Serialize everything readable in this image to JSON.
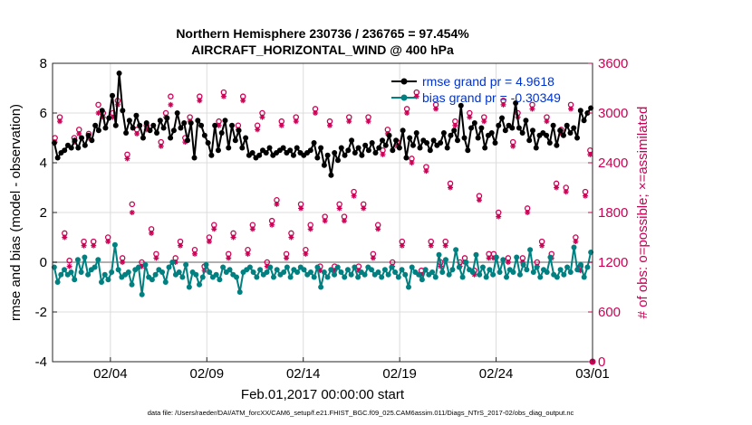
{
  "chart_data": {
    "type": "line",
    "title": "Northern Hemisphere 230736 / 236765 = 97.454%",
    "subtitle": "AIRCRAFT_HORIZONTAL_WIND @ 400 hPa",
    "xlabel": "Feb.01,2017 00:00:00 start",
    "ylabel_left": "rmse and bias (model - observation)",
    "ylabel_right": "# of obs: o=possible; ×=assimilated",
    "footer": "data file: /Users/raeder/DAI/ATM_forcXX/CAM6_setup/f.e21.FHIST_BGC.f09_025.CAM6assim.011/Diags_NTrS_2017-02/obs_diag_output.nc",
    "x_range": [
      0,
      28
    ],
    "x_ticks": [
      {
        "v": 3,
        "label": "02/04"
      },
      {
        "v": 8,
        "label": "02/09"
      },
      {
        "v": 13,
        "label": "02/14"
      },
      {
        "v": 18,
        "label": "02/19"
      },
      {
        "v": 23,
        "label": "02/24"
      },
      {
        "v": 28,
        "label": "03/01"
      }
    ],
    "ylim_left": [
      -4,
      8
    ],
    "yticks_left": [
      "-4",
      "-2",
      "0",
      "2",
      "4",
      "6",
      "8"
    ],
    "ylim_right": [
      0,
      3600
    ],
    "yticks_right": [
      "0",
      "600",
      "1200",
      "1800",
      "2400",
      "3000",
      "3600"
    ],
    "colors": {
      "rmse": "#000000",
      "bias": "#008080",
      "obs": "#cc0055",
      "zero_line": "#b0b0b0",
      "legend_text": "#0033cc",
      "grid": "#dcdcdc"
    },
    "series": [
      {
        "name": "rmse grand pr = 4.9618",
        "axis": "left",
        "values": [
          4.8,
          4.2,
          4.4,
          4.5,
          4.7,
          4.6,
          4.9,
          4.6,
          5.0,
          4.7,
          5.1,
          4.9,
          5.5,
          5.3,
          6.1,
          5.4,
          5.8,
          6.7,
          5.5,
          7.6,
          6.1,
          5.2,
          5.7,
          5.4,
          5.9,
          5.5,
          5.0,
          5.6,
          5.3,
          5.5,
          5.2,
          5.7,
          5.4,
          5.8,
          5.0,
          5.3,
          6.0,
          5.4,
          5.6,
          4.9,
          5.6,
          4.2,
          5.7,
          5.5,
          5.1,
          4.8,
          4.3,
          5.5,
          4.5,
          5.2,
          5.7,
          4.6,
          5.5,
          4.9,
          5.3,
          4.6,
          5.0,
          4.3,
          4.4,
          4.2,
          4.3,
          4.5,
          4.4,
          4.6,
          4.3,
          4.4,
          4.5,
          4.6,
          4.4,
          4.5,
          4.3,
          4.6,
          4.4,
          4.3,
          4.4,
          4.5,
          4.8,
          4.2,
          4.6,
          3.9,
          4.3,
          3.5,
          4.4,
          4.1,
          4.6,
          4.3,
          4.5,
          4.9,
          4.4,
          4.6,
          4.3,
          4.7,
          4.5,
          4.8,
          4.4,
          4.6,
          4.9,
          4.7,
          5.1,
          4.5,
          4.9,
          4.6,
          5.3,
          4.2,
          5.0,
          4.7,
          5.2,
          4.6,
          4.9,
          4.8,
          4.5,
          4.9,
          4.7,
          4.8,
          5.2,
          4.6,
          5.1,
          5.3,
          4.9,
          6.3,
          5.0,
          4.5,
          5.4,
          5.6,
          5.0,
          5.4,
          4.6,
          5.1,
          5.2,
          4.8,
          5.5,
          5.8,
          5.3,
          5.5,
          5.4,
          6.4,
          5.4,
          5.2,
          5.7,
          4.9,
          5.3,
          4.6,
          5.1,
          5.2,
          5.1,
          4.8,
          5.5,
          4.7,
          5.3,
          5.1,
          5.5,
          5.2,
          5.4,
          5.0,
          6.1,
          5.7,
          6.0,
          6.2
        ]
      },
      {
        "name": "bias grand pr = -0.30349",
        "axis": "left",
        "values": [
          -0.2,
          -0.8,
          -0.5,
          -0.3,
          -0.5,
          -0.4,
          -0.7,
          0.1,
          -0.4,
          0.2,
          -0.5,
          -0.3,
          -0.2,
          0.1,
          -0.8,
          -0.5,
          -0.7,
          -0.4,
          0.7,
          -0.3,
          -0.6,
          -0.5,
          -0.4,
          -0.9,
          -0.3,
          -0.2,
          -1.3,
          -0.1,
          -0.6,
          -0.7,
          -0.5,
          -0.3,
          -0.4,
          -0.8,
          -0.2,
          0.0,
          -0.5,
          -0.4,
          -0.6,
          -0.1,
          -1.0,
          -0.4,
          -0.5,
          -0.9,
          -0.6,
          -0.1,
          -0.4,
          -0.6,
          -0.5,
          -0.7,
          -0.2,
          -0.4,
          -0.3,
          -0.5,
          -0.6,
          -1.2,
          -0.4,
          -0.3,
          -0.2,
          -0.4,
          -0.6,
          -0.3,
          -0.5,
          -0.4,
          -0.2,
          -0.6,
          -0.3,
          -0.5,
          -0.4,
          -0.2,
          -0.6,
          -0.3,
          -0.4,
          -0.2,
          -0.3,
          -0.5,
          -0.4,
          -0.6,
          -0.2,
          -1.0,
          -0.4,
          -0.6,
          -0.3,
          -0.5,
          -0.2,
          -0.4,
          -0.6,
          -0.3,
          -0.5,
          -0.2,
          -0.6,
          -0.4,
          -0.5,
          -0.2,
          -0.3,
          -0.5,
          -0.4,
          -0.6,
          -0.3,
          -0.5,
          -0.2,
          -0.4,
          -0.6,
          -0.3,
          -0.5,
          -1.0,
          -0.2,
          -0.4,
          -0.5,
          -0.7,
          -0.3,
          -0.5,
          -0.4,
          -0.6,
          0.3,
          -0.4,
          0.1,
          -0.5,
          -0.3,
          0.5,
          -0.2,
          -0.6,
          0.0,
          -0.3,
          -0.4,
          0.3,
          -0.5,
          -0.2,
          -0.6,
          -0.3,
          -0.5,
          0.2,
          -0.4,
          0.1,
          -0.6,
          -0.3,
          -0.4,
          0.2,
          -0.5,
          -0.1,
          -0.3,
          0.5,
          -0.4,
          -0.2,
          -0.6,
          -0.3,
          -0.4,
          0.2,
          -0.5,
          -0.6,
          -0.3,
          -0.5,
          -0.2,
          -0.4,
          0.6,
          -0.3,
          -0.1,
          -0.6,
          -0.2,
          0.4
        ]
      }
    ],
    "obs_possible": {
      "axis": "right",
      "marker": "o",
      "x": [
        0.125,
        0.375,
        0.625,
        0.875,
        1.125,
        1.375,
        1.625,
        1.875,
        2.125,
        2.375,
        2.625,
        2.875,
        3.125,
        3.375,
        3.625,
        3.875,
        4.125,
        4.375,
        4.625,
        4.875,
        5.125,
        5.375,
        5.625,
        5.875,
        6.125,
        6.375,
        6.625,
        6.875,
        7.125,
        7.375,
        7.625,
        7.875,
        8.125,
        8.375,
        8.625,
        8.875,
        9.125,
        9.375,
        9.625,
        9.875,
        10.125,
        10.375,
        10.625,
        10.875,
        11.125,
        11.375,
        11.625,
        11.875,
        12.125,
        12.375,
        12.625,
        12.875,
        13.125,
        13.375,
        13.625,
        13.875,
        14.125,
        14.375,
        14.625,
        14.875,
        15.125,
        15.375,
        15.625,
        15.875,
        16.125,
        16.375,
        16.625,
        16.875,
        17.125,
        17.375,
        17.625,
        17.875,
        18.125,
        18.375,
        18.625,
        18.875,
        19.125,
        19.375,
        19.625,
        19.875,
        20.125,
        20.375,
        20.625,
        20.875,
        21.125,
        21.375,
        21.625,
        21.875,
        22.125,
        22.375,
        22.625,
        22.875,
        23.125,
        23.375,
        23.625,
        23.875,
        24.125,
        24.375,
        24.625,
        24.875,
        25.125,
        25.375,
        25.625,
        25.875,
        26.125,
        26.375,
        26.625,
        26.875,
        27.125,
        27.375,
        27.625,
        27.875
      ],
      "values": [
        2700,
        2950,
        1550,
        1220,
        2700,
        2800,
        1450,
        2750,
        1450,
        3100,
        3000,
        1500,
        3000,
        3150,
        1250,
        2500,
        1900,
        2800,
        1200,
        2850,
        1600,
        1300,
        2650,
        3000,
        3200,
        1250,
        1450,
        2700,
        2950,
        1350,
        3200,
        1150,
        1500,
        1650,
        2900,
        3250,
        1300,
        1550,
        2850,
        3200,
        1350,
        1650,
        2850,
        3000,
        1200,
        1700,
        1950,
        2900,
        1300,
        1550,
        2950,
        1900,
        1350,
        1650,
        3050,
        1150,
        1750,
        2900,
        1150,
        1900,
        1750,
        2950,
        2050,
        1150,
        1900,
        2950,
        1300,
        1650,
        2550,
        2800,
        1200,
        2650,
        1450,
        3050,
        2450,
        3250,
        1100,
        2350,
        1450,
        3100,
        1200,
        1450,
        2150,
        2900,
        1200,
        1250,
        3000,
        1100,
        2000,
        2950,
        1300,
        1300,
        1800,
        3150,
        1250,
        2650,
        3000,
        1250,
        1850,
        3100,
        1200,
        1450,
        2950,
        1300,
        2150,
        2800,
        2100,
        3100,
        1500,
        1150,
        2050,
        2550
      ]
    },
    "obs_assimilated": {
      "axis": "right",
      "marker": "x",
      "x": [
        0.125,
        0.375,
        0.625,
        0.875,
        1.125,
        1.375,
        1.625,
        1.875,
        2.125,
        2.375,
        2.625,
        2.875,
        3.125,
        3.375,
        3.625,
        3.875,
        4.125,
        4.375,
        4.625,
        4.875,
        5.125,
        5.375,
        5.625,
        5.875,
        6.125,
        6.375,
        6.625,
        6.875,
        7.125,
        7.375,
        7.625,
        7.875,
        8.125,
        8.375,
        8.625,
        8.875,
        9.125,
        9.375,
        9.625,
        9.875,
        10.125,
        10.375,
        10.625,
        10.875,
        11.125,
        11.375,
        11.625,
        11.875,
        12.125,
        12.375,
        12.625,
        12.875,
        13.125,
        13.375,
        13.625,
        13.875,
        14.125,
        14.375,
        14.625,
        14.875,
        15.125,
        15.375,
        15.625,
        15.875,
        16.125,
        16.375,
        16.625,
        16.875,
        17.125,
        17.375,
        17.625,
        17.875,
        18.125,
        18.375,
        18.625,
        18.875,
        19.125,
        19.375,
        19.625,
        19.875,
        20.125,
        20.375,
        20.625,
        20.875,
        21.125,
        21.375,
        21.625,
        21.875,
        22.125,
        22.375,
        22.625,
        22.875,
        23.125,
        23.375,
        23.625,
        23.875,
        24.125,
        24.375,
        24.625,
        24.875,
        25.125,
        25.375,
        25.625,
        25.875,
        26.125,
        26.375,
        26.625,
        26.875,
        27.125,
        27.375,
        27.625,
        27.875
      ],
      "values": [
        2650,
        2900,
        1500,
        1150,
        2650,
        2750,
        1400,
        2700,
        1400,
        3000,
        2950,
        1450,
        2950,
        3100,
        1200,
        2450,
        1800,
        2750,
        1150,
        2800,
        1550,
        1250,
        2600,
        2950,
        3100,
        1200,
        1400,
        2650,
        2900,
        1300,
        3150,
        1100,
        1450,
        1600,
        2850,
        3200,
        1250,
        1500,
        2800,
        3150,
        1300,
        1600,
        2800,
        2950,
        1150,
        1650,
        1900,
        2850,
        1250,
        1500,
        2900,
        1850,
        1300,
        1600,
        3000,
        1100,
        1700,
        2850,
        1100,
        1850,
        1700,
        2900,
        2000,
        1100,
        1850,
        2900,
        1250,
        1600,
        2500,
        2750,
        1150,
        2600,
        1400,
        3000,
        2400,
        3200,
        1050,
        2300,
        1400,
        3050,
        1150,
        1400,
        2100,
        2850,
        1150,
        1200,
        2950,
        1050,
        1950,
        2900,
        1250,
        1250,
        1750,
        3100,
        1200,
        2600,
        2950,
        1200,
        1800,
        3050,
        1150,
        1400,
        2900,
        1250,
        2100,
        2750,
        2050,
        3050,
        1450,
        1100,
        2000,
        2500
      ]
    }
  }
}
